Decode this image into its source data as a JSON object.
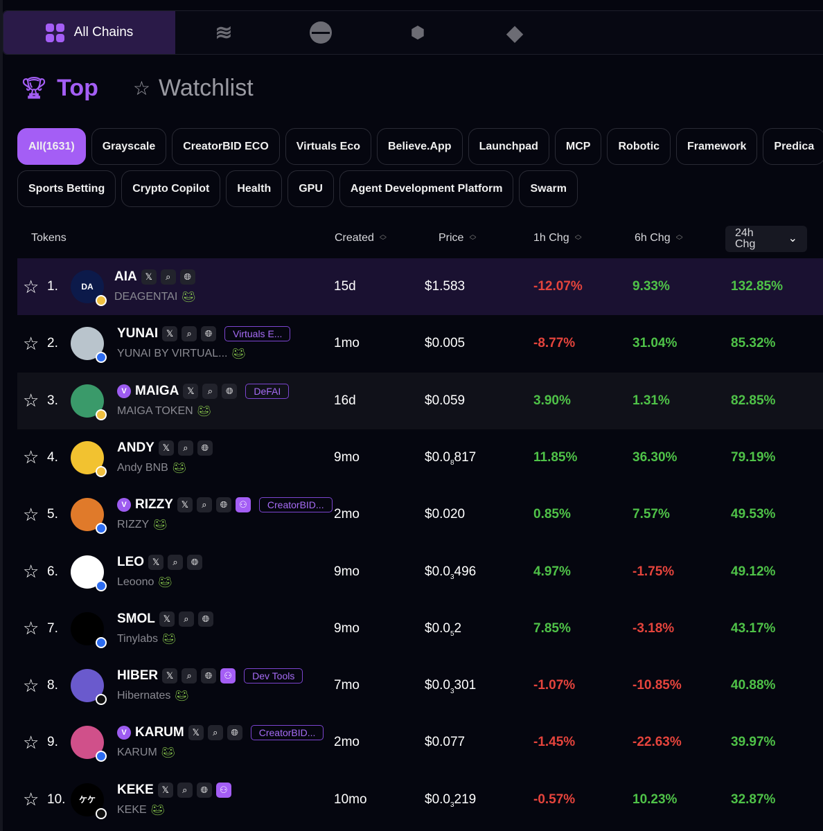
{
  "chains": {
    "active_label": "All Chains",
    "icons": [
      "solana-icon",
      "base-icon",
      "bnb-icon",
      "ethereum-icon"
    ]
  },
  "tabs": {
    "top": "Top",
    "watchlist": "Watchlist"
  },
  "filters_row1": [
    "All(1631)",
    "Grayscale",
    "CreatorBID ECO",
    "Virtuals Eco",
    "Believe.App",
    "Launchpad",
    "MCP",
    "Robotic",
    "Framework",
    "Predica"
  ],
  "filters_row2": [
    "Sports Betting",
    "Crypto Copilot",
    "Health",
    "GPU",
    "Agent Development Platform",
    "Swarm"
  ],
  "columns": {
    "tokens": "Tokens",
    "created": "Created",
    "price": "Price",
    "h1": "1h Chg",
    "h6": "6h Chg",
    "h24": "24h Chg"
  },
  "colors": {
    "accent": "#a45ef5",
    "positive": "#4fc248",
    "negative": "#e5443c"
  },
  "rows": [
    {
      "rank": "1.",
      "symbol": "AIA",
      "name": "DEAGENTAI",
      "verified": false,
      "dev": false,
      "tag": "",
      "created": "15d",
      "price": "$1.583",
      "price_zeros": "",
      "price_tail": "",
      "h1": "-12.07%",
      "h6": "9.33%",
      "h24": "132.85%",
      "avatar": "DA",
      "avbg": "#0c1a4a",
      "chain": "#f0c040"
    },
    {
      "rank": "2.",
      "symbol": "YUNAI",
      "name": "YUNAI BY VIRTUAL...",
      "verified": false,
      "dev": false,
      "tag": "Virtuals E...",
      "created": "1mo",
      "price": "$0.005",
      "price_zeros": "",
      "price_tail": "",
      "h1": "-8.77%",
      "h6": "31.04%",
      "h24": "85.32%",
      "avatar": "",
      "avbg": "#b9c4cc",
      "chain": "#2d6cf0"
    },
    {
      "rank": "3.",
      "symbol": "MAIGA",
      "name": "MAIGA TOKEN",
      "verified": true,
      "dev": false,
      "tag": "DeFAI",
      "created": "16d",
      "price": "$0.059",
      "price_zeros": "",
      "price_tail": "",
      "h1": "3.90%",
      "h6": "1.31%",
      "h24": "82.85%",
      "avatar": "",
      "avbg": "#3a9a6a",
      "chain": "#f0c040"
    },
    {
      "rank": "4.",
      "symbol": "ANDY",
      "name": "Andy BNB",
      "verified": false,
      "dev": false,
      "tag": "",
      "created": "9mo",
      "price": "$0.0",
      "price_zeros": "8",
      "price_tail": "817",
      "h1": "11.85%",
      "h6": "36.30%",
      "h24": "79.19%",
      "avatar": "",
      "avbg": "#f2c230",
      "chain": "#f0c040"
    },
    {
      "rank": "5.",
      "symbol": "RIZZY",
      "name": "RIZZY",
      "verified": true,
      "dev": true,
      "tag": "CreatorBID...",
      "created": "2mo",
      "price": "$0.020",
      "price_zeros": "",
      "price_tail": "",
      "h1": "0.85%",
      "h6": "7.57%",
      "h24": "49.53%",
      "avatar": "",
      "avbg": "#e07a2a",
      "chain": "#2d6cf0"
    },
    {
      "rank": "6.",
      "symbol": "LEO",
      "name": "Leoono",
      "verified": false,
      "dev": false,
      "tag": "",
      "created": "9mo",
      "price": "$0.0",
      "price_zeros": "3",
      "price_tail": "496",
      "h1": "4.97%",
      "h6": "-1.75%",
      "h24": "49.12%",
      "avatar": "",
      "avbg": "#ffffff",
      "chain": "#2d6cf0"
    },
    {
      "rank": "7.",
      "symbol": "SMOL",
      "name": "Tinylabs",
      "verified": false,
      "dev": false,
      "tag": "",
      "created": "9mo",
      "price": "$0.0",
      "price_zeros": "5",
      "price_tail": "2",
      "h1": "7.85%",
      "h6": "-3.18%",
      "h24": "43.17%",
      "avatar": "",
      "avbg": "#000000",
      "chain": "#2d6cf0"
    },
    {
      "rank": "8.",
      "symbol": "HIBER",
      "name": "Hibernates",
      "verified": false,
      "dev": true,
      "tag": "Dev Tools",
      "created": "7mo",
      "price": "$0.0",
      "price_zeros": "3",
      "price_tail": "301",
      "h1": "-1.07%",
      "h6": "-10.85%",
      "h24": "40.88%",
      "avatar": "",
      "avbg": "#6a5acd",
      "chain": "#111111"
    },
    {
      "rank": "9.",
      "symbol": "KARUM",
      "name": "KARUM",
      "verified": true,
      "dev": false,
      "tag": "CreatorBID...",
      "created": "2mo",
      "price": "$0.077",
      "price_zeros": "",
      "price_tail": "",
      "h1": "-1.45%",
      "h6": "-22.63%",
      "h24": "39.97%",
      "avatar": "",
      "avbg": "#d0508a",
      "chain": "#2d6cf0"
    },
    {
      "rank": "10.",
      "symbol": "KEKE",
      "name": "KEKE",
      "verified": false,
      "dev": true,
      "tag": "",
      "created": "10mo",
      "price": "$0.0",
      "price_zeros": "3",
      "price_tail": "219",
      "h1": "-0.57%",
      "h6": "10.23%",
      "h24": "32.87%",
      "avatar": "ケケ",
      "avbg": "#000000",
      "chain": "#111111"
    }
  ]
}
